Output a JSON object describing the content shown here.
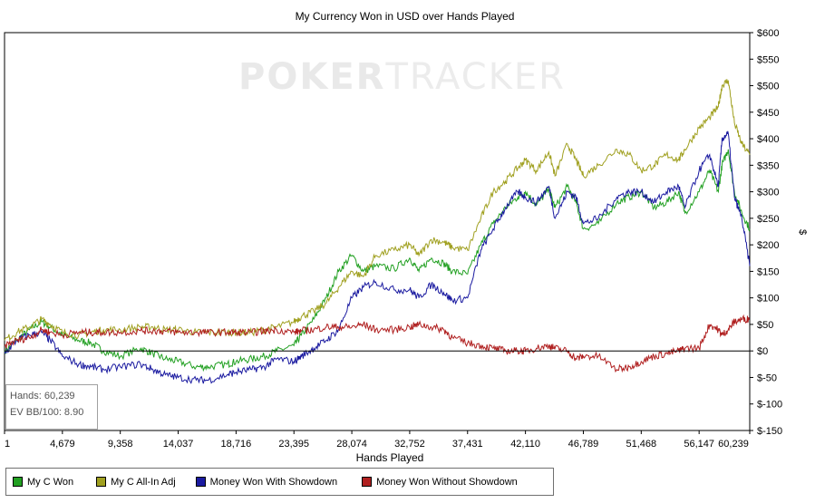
{
  "watermark": {
    "brand_a": "POKER",
    "brand_b": "TRACKER"
  },
  "stats": {
    "hands": "Hands: 60,239",
    "ev": "EV BB/100: 8.90"
  },
  "chart_data": {
    "type": "line",
    "title": "My Currency Won in USD over Hands Played",
    "xlabel": "Hands Played",
    "ylabel": "$",
    "xlim": [
      1,
      60239
    ],
    "ylim": [
      -150,
      600
    ],
    "x_ticks": [
      "1",
      "4,679",
      "9,358",
      "14,037",
      "18,716",
      "23,395",
      "28,074",
      "32,752",
      "37,431",
      "42,110",
      "46,789",
      "51,468",
      "56,147",
      "60,239"
    ],
    "x_tick_values": [
      1,
      4679,
      9358,
      14037,
      18716,
      23395,
      28074,
      32752,
      37431,
      42110,
      46789,
      51468,
      56147,
      60239
    ],
    "y_ticks": [
      "$600",
      "$550",
      "$500",
      "$450",
      "$400",
      "$350",
      "$300",
      "$250",
      "$200",
      "$150",
      "$100",
      "$50",
      "$0",
      "$-50",
      "$-100",
      "$-150"
    ],
    "y_tick_values": [
      600,
      550,
      500,
      450,
      400,
      350,
      300,
      250,
      200,
      150,
      100,
      50,
      0,
      -50,
      -100,
      -150
    ],
    "grid": false,
    "legend_position": "bottom-left",
    "series": [
      {
        "name": "My C Won",
        "color": "#22a022",
        "x": [
          1,
          1000,
          2000,
          3000,
          3700,
          4679,
          6000,
          7000,
          8000,
          9358,
          11000,
          12000,
          13000,
          14037,
          15500,
          16500,
          18000,
          18716,
          20000,
          21000,
          22000,
          23395,
          24000,
          25000,
          26000,
          27000,
          28074,
          29000,
          30000,
          31500,
          32752,
          33500,
          34500,
          35500,
          36200,
          37431,
          38500,
          39500,
          40500,
          41500,
          42110,
          43000,
          44000,
          44500,
          45500,
          46200,
          46789,
          48000,
          49500,
          50500,
          51468,
          52500,
          53500,
          54500,
          55000,
          56147,
          57000,
          57700,
          58000,
          58500,
          59000,
          59600,
          60239
        ],
        "y": [
          0,
          20,
          40,
          55,
          45,
          30,
          20,
          15,
          0,
          -10,
          5,
          -5,
          -15,
          -20,
          -30,
          -30,
          -25,
          -20,
          -15,
          -10,
          0,
          10,
          30,
          60,
          100,
          150,
          180,
          150,
          160,
          155,
          175,
          150,
          175,
          165,
          150,
          145,
          200,
          240,
          270,
          290,
          300,
          275,
          305,
          270,
          310,
          280,
          230,
          240,
          280,
          290,
          300,
          270,
          280,
          300,
          260,
          300,
          340,
          300,
          350,
          380,
          300,
          260,
          230
        ]
      },
      {
        "name": "My C All-In Adj",
        "color": "#a0a020",
        "x": [
          1,
          1000,
          2000,
          3000,
          3700,
          4679,
          6000,
          7000,
          8000,
          9358,
          11000,
          12000,
          13000,
          14037,
          15500,
          16500,
          18000,
          18716,
          20000,
          21000,
          22000,
          23395,
          24000,
          25000,
          26000,
          27000,
          28074,
          29000,
          30000,
          31500,
          32752,
          33500,
          34500,
          35500,
          36200,
          37431,
          38500,
          39500,
          40500,
          41500,
          42110,
          43000,
          44000,
          44500,
          45500,
          46200,
          46789,
          48000,
          49500,
          50500,
          51468,
          52500,
          53500,
          54500,
          55000,
          56147,
          57000,
          57700,
          58000,
          58500,
          59000,
          59600,
          60239
        ],
        "y": [
          20,
          35,
          45,
          60,
          50,
          35,
          30,
          35,
          40,
          40,
          45,
          45,
          40,
          40,
          35,
          35,
          35,
          35,
          35,
          40,
          45,
          55,
          65,
          75,
          90,
          120,
          150,
          140,
          180,
          190,
          200,
          180,
          210,
          205,
          195,
          190,
          250,
          300,
          320,
          345,
          360,
          340,
          375,
          330,
          390,
          360,
          330,
          350,
          380,
          370,
          340,
          350,
          370,
          360,
          380,
          420,
          440,
          460,
          500,
          510,
          430,
          390,
          370
        ]
      },
      {
        "name": "Money Won With Showdown",
        "color": "#1a1aa0",
        "x": [
          1,
          1000,
          2000,
          3000,
          3700,
          4679,
          6000,
          7000,
          8000,
          9358,
          11000,
          12000,
          13000,
          14037,
          15500,
          16500,
          18000,
          18716,
          20000,
          21000,
          22000,
          23395,
          24000,
          25000,
          26000,
          27000,
          28074,
          29000,
          30000,
          31500,
          32752,
          33500,
          34500,
          35500,
          36200,
          37431,
          38500,
          39500,
          40500,
          41500,
          42110,
          43000,
          44000,
          44500,
          45500,
          46200,
          46789,
          48000,
          49500,
          50500,
          51468,
          52500,
          53500,
          54500,
          55000,
          56147,
          57000,
          57700,
          58000,
          58500,
          59000,
          59600,
          60239
        ],
        "y": [
          -5,
          20,
          30,
          35,
          20,
          -10,
          -25,
          -30,
          -35,
          -30,
          -25,
          -35,
          -45,
          -50,
          -55,
          -55,
          -45,
          -40,
          -35,
          -30,
          -15,
          -20,
          -10,
          5,
          20,
          40,
          100,
          120,
          130,
          115,
          115,
          100,
          125,
          110,
          95,
          100,
          190,
          230,
          270,
          300,
          290,
          280,
          310,
          250,
          300,
          290,
          240,
          250,
          290,
          300,
          300,
          280,
          300,
          310,
          270,
          340,
          370,
          310,
          400,
          410,
          290,
          250,
          160
        ]
      },
      {
        "name": "Money Won Without Showdown",
        "color": "#b02020",
        "x": [
          1,
          1000,
          2000,
          3000,
          3700,
          4679,
          6000,
          7000,
          8000,
          9358,
          11000,
          12000,
          13000,
          14037,
          15500,
          16500,
          18000,
          18716,
          20000,
          21000,
          22000,
          23395,
          24000,
          25000,
          26000,
          27000,
          28074,
          29000,
          30000,
          31500,
          32752,
          33500,
          34500,
          35500,
          36200,
          37431,
          38500,
          39500,
          40500,
          41500,
          42110,
          43000,
          44000,
          44500,
          45500,
          46200,
          46789,
          48000,
          49500,
          50500,
          51468,
          52500,
          53500,
          54500,
          55000,
          56147,
          57000,
          57700,
          58000,
          58500,
          59000,
          59600,
          60239
        ],
        "y": [
          10,
          20,
          25,
          40,
          35,
          30,
          35,
          35,
          35,
          35,
          38,
          38,
          37,
          35,
          35,
          35,
          35,
          35,
          35,
          37,
          40,
          35,
          38,
          40,
          45,
          45,
          45,
          50,
          40,
          40,
          45,
          50,
          45,
          40,
          25,
          15,
          10,
          5,
          0,
          0,
          0,
          5,
          10,
          5,
          0,
          -15,
          -10,
          -10,
          -35,
          -30,
          -20,
          -10,
          -5,
          0,
          5,
          5,
          50,
          40,
          30,
          40,
          55,
          60,
          60
        ]
      }
    ]
  }
}
